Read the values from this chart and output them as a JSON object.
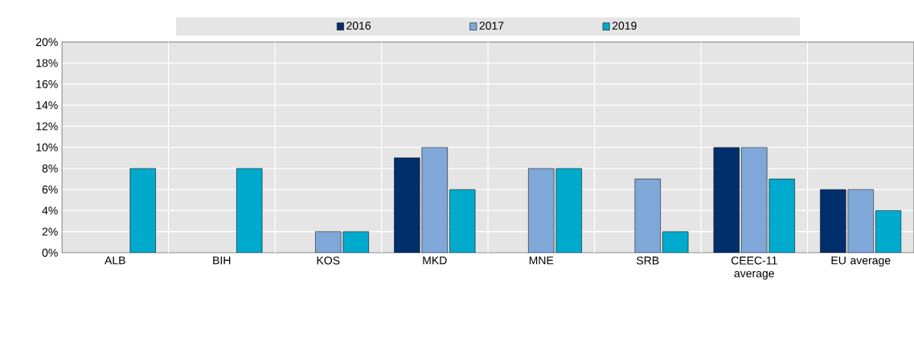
{
  "chart_data": {
    "type": "bar",
    "categories": [
      "ALB",
      "BIH",
      "KOS",
      "MKD",
      "MNE",
      "SRB",
      "CEEC-11 average",
      "EU average"
    ],
    "series": [
      {
        "name": "2016",
        "color": "#002f6c",
        "values": [
          null,
          null,
          null,
          9,
          null,
          null,
          10,
          6
        ]
      },
      {
        "name": "2017",
        "color": "#7fa8d9",
        "values": [
          null,
          null,
          2,
          10,
          8,
          7,
          10,
          6
        ]
      },
      {
        "name": "2019",
        "color": "#00aacc",
        "values": [
          8,
          8,
          2,
          6,
          8,
          2,
          7,
          4
        ]
      }
    ],
    "ylim": [
      0,
      20
    ],
    "yticks": [
      {
        "value": 0,
        "label": "0%"
      },
      {
        "value": 2,
        "label": "2%"
      },
      {
        "value": 4,
        "label": "4%"
      },
      {
        "value": 6,
        "label": "6%"
      },
      {
        "value": 8,
        "label": "8%"
      },
      {
        "value": 10,
        "label": "10%"
      },
      {
        "value": 12,
        "label": "12%"
      },
      {
        "value": 14,
        "label": "14%"
      },
      {
        "value": 16,
        "label": "16%"
      },
      {
        "value": 18,
        "label": "18%"
      },
      {
        "value": 20,
        "label": "20%"
      }
    ],
    "grid": true,
    "legend": "top"
  }
}
